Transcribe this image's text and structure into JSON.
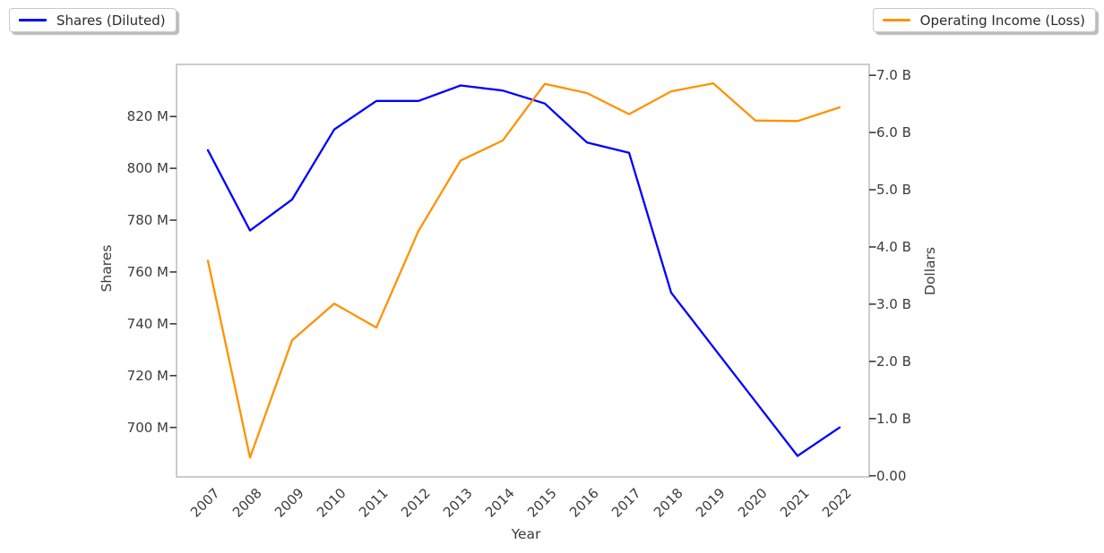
{
  "theme": {
    "accent_blue": "#0000ff",
    "accent_orange": "#ff9200",
    "axis_border_color": "#cccccc",
    "tick_text_color": "#3b3b3b"
  },
  "chart_data": {
    "type": "line",
    "title": "",
    "xlabel": "Year",
    "grid": false,
    "legend_positions": [
      "upper left",
      "upper right"
    ],
    "x_categories": [
      "2007",
      "2008",
      "2009",
      "2010",
      "2011",
      "2012",
      "2013",
      "2014",
      "2015",
      "2016",
      "2017",
      "2018",
      "2019",
      "2020",
      "2021",
      "2022"
    ],
    "left_axis": {
      "label": "Shares",
      "unit": "millions",
      "min": 680.9,
      "max": 840.1,
      "ticks": [
        {
          "value": 820,
          "label": "820 M"
        },
        {
          "value": 800,
          "label": "800 M"
        },
        {
          "value": 780,
          "label": "780 M"
        },
        {
          "value": 760,
          "label": "760 M"
        },
        {
          "value": 740,
          "label": "740 M"
        },
        {
          "value": 720,
          "label": "720 M"
        },
        {
          "value": 700,
          "label": "700 M"
        }
      ]
    },
    "right_axis": {
      "label": "Dollars",
      "unit": "billions",
      "min": -0.02,
      "max": 7.19,
      "ticks": [
        {
          "value": 7.0,
          "label": "7.0 B"
        },
        {
          "value": 6.0,
          "label": "6.0 B"
        },
        {
          "value": 5.0,
          "label": "5.0 B"
        },
        {
          "value": 4.0,
          "label": "4.0 B"
        },
        {
          "value": 3.0,
          "label": "3.0 B"
        },
        {
          "value": 2.0,
          "label": "2.0 B"
        },
        {
          "value": 1.0,
          "label": "1.0 B"
        },
        {
          "value": 0.0,
          "label": "0.00"
        }
      ]
    },
    "series": [
      {
        "name": "Shares (Diluted)",
        "axis": "left",
        "color": "#0000ff",
        "values": [
          807,
          776,
          788,
          815,
          826,
          826,
          832,
          830,
          825,
          810,
          806,
          752,
          731,
          710,
          689,
          700
        ]
      },
      {
        "name": "Operating Income (Loss)",
        "axis": "right",
        "color": "#ff9200",
        "values": [
          3.76,
          0.32,
          2.37,
          3.01,
          2.59,
          4.28,
          5.51,
          5.86,
          6.85,
          6.69,
          6.32,
          6.72,
          6.86,
          6.21,
          6.2,
          6.44
        ]
      }
    ]
  }
}
